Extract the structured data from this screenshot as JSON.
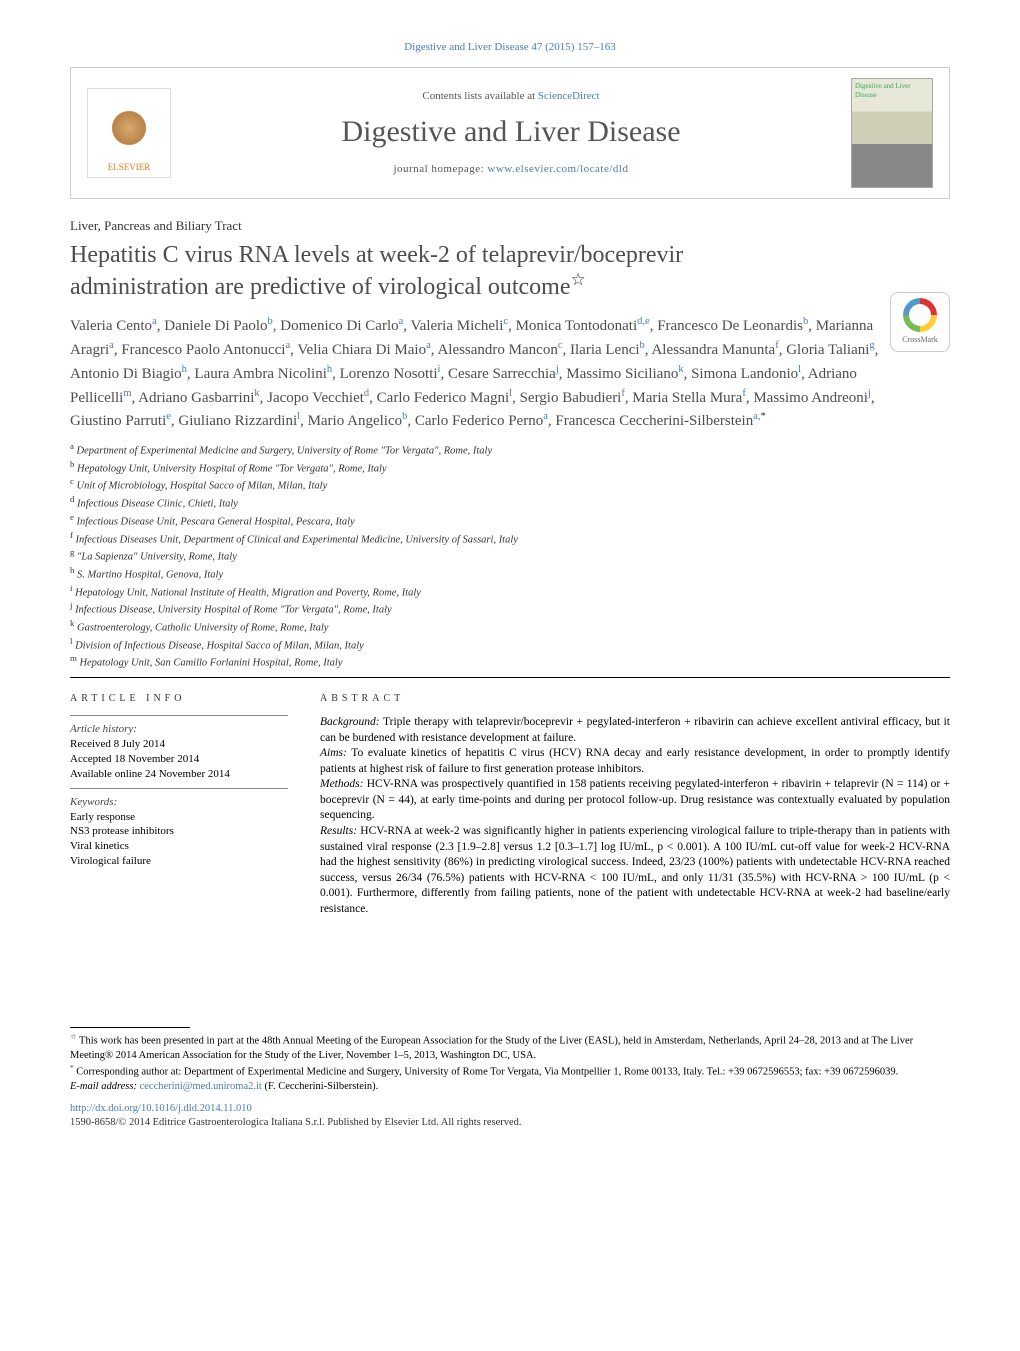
{
  "journal_ref_top": "Digestive and Liver Disease 47 (2015) 157–163",
  "header": {
    "contents_prefix": "Contents lists available at ",
    "contents_link": "ScienceDirect",
    "journal_title": "Digestive and Liver Disease",
    "homepage_prefix": "journal homepage: ",
    "homepage_url": "www.elsevier.com/locate/dld",
    "elsevier_label": "ELSEVIER",
    "cover_text": "Digestive and Liver Disease"
  },
  "section_label": "Liver, Pancreas and Biliary Tract",
  "article_title_line1": "Hepatitis C virus RNA levels at week-2 of telaprevir/boceprevir",
  "article_title_line2": "administration are predictive of virological outcome",
  "title_note_marker": "☆",
  "crossmark_label": "CrossMark",
  "authors_html": "Valeria Cento<span class='sup'>a</span>, Daniele Di Paolo<span class='sup'>b</span>, Domenico Di Carlo<span class='sup'>a</span>, Valeria Micheli<span class='sup'>c</span>, Monica Tontodonati<span class='sup'>d,e</span>, Francesco De Leonardis<span class='sup'>b</span>, Marianna Aragri<span class='sup'>a</span>, Francesco Paolo Antonucci<span class='sup'>a</span>, Velia Chiara Di Maio<span class='sup'>a</span>, Alessandro Mancon<span class='sup'>c</span>, Ilaria Lenci<span class='sup'>b</span>, Alessandra Manunta<span class='sup'>f</span>, Gloria Taliani<span class='sup'>g</span>, Antonio Di Biagio<span class='sup'>h</span>, Laura Ambra Nicolini<span class='sup'>h</span>, Lorenzo Nosotti<span class='sup'>i</span>, Cesare Sarrecchia<span class='sup'>j</span>, Massimo Siciliano<span class='sup'>k</span>, Simona Landonio<span class='sup'>l</span>, Adriano Pellicelli<span class='sup'>m</span>, Adriano Gasbarrini<span class='sup'>k</span>, Jacopo Vecchiet<span class='sup'>d</span>, Carlo Federico Magni<span class='sup'>l</span>, Sergio Babudieri<span class='sup'>f</span>, Maria Stella Mura<span class='sup'>f</span>, Massimo Andreoni<span class='sup'>j</span>, Giustino Parruti<span class='sup'>e</span>, Giuliano Rizzardini<span class='sup'>l</span>, Mario Angelico<span class='sup'>b</span>, Carlo Federico Perno<span class='sup'>a</span>, Francesca Ceccherini-Silberstein<span class='sup'>a,</span><span class='sup-black'>*</span>",
  "affiliations": [
    "a Department of Experimental Medicine and Surgery, University of Rome \"Tor Vergata\", Rome, Italy",
    "b Hepatology Unit, University Hospital of Rome \"Tor Vergata\", Rome, Italy",
    "c Unit of Microbiology, Hospital Sacco of Milan, Milan, Italy",
    "d Infectious Disease Clinic, Chieti, Italy",
    "e Infectious Disease Unit, Pescara General Hospital, Pescara, Italy",
    "f Infectious Diseases Unit, Department of Clinical and Experimental Medicine, University of Sassari, Italy",
    "g \"La Sapienza\" University, Rome, Italy",
    "h S. Martino Hospital, Genova, Italy",
    "i Hepatology Unit, National Institute of Health, Migration and Poverty, Rome, Italy",
    "j Infectious Disease, University Hospital of Rome \"Tor Vergata\", Rome, Italy",
    "k Gastroenterology, Catholic University of Rome, Rome, Italy",
    "l Division of Infectious Disease, Hospital Sacco of Milan, Milan, Italy",
    "m Hepatology Unit, San Camillo Forlanini Hospital, Rome, Italy"
  ],
  "article_info": {
    "heading": "article info",
    "history_label": "Article history:",
    "received": "Received 8 July 2014",
    "accepted": "Accepted 18 November 2014",
    "online": "Available online 24 November 2014",
    "keywords_label": "Keywords:",
    "keywords": [
      "Early response",
      "NS3 protease inhibitors",
      "Viral kinetics",
      "Virological failure"
    ]
  },
  "abstract": {
    "heading": "abstract",
    "background_label": "Background:",
    "background": " Triple therapy with telaprevir/boceprevir + pegylated-interferon + ribavirin can achieve excellent antiviral efficacy, but it can be burdened with resistance development at failure.",
    "aims_label": "Aims:",
    "aims": " To evaluate kinetics of hepatitis C virus (HCV) RNA decay and early resistance development, in order to promptly identify patients at highest risk of failure to first generation protease inhibitors.",
    "methods_label": "Methods:",
    "methods": " HCV-RNA was prospectively quantified in 158 patients receiving pegylated-interferon + ribavirin + telaprevir (N = 114) or + boceprevir (N = 44), at early time-points and during per protocol follow-up. Drug resistance was contextually evaluated by population sequencing.",
    "results_label": "Results:",
    "results": " HCV-RNA at week-2 was significantly higher in patients experiencing virological failure to triple-therapy than in patients with sustained viral response (2.3 [1.9–2.8] versus 1.2 [0.3–1.7] log IU/mL, p < 0.001). A 100 IU/mL cut-off value for week-2 HCV-RNA had the highest sensitivity (86%) in predicting virological success. Indeed, 23/23 (100%) patients with undetectable HCV-RNA reached success, versus 26/34 (76.5%) patients with HCV-RNA < 100 IU/mL, and only 11/31 (35.5%) with HCV-RNA > 100 IU/mL (p < 0.001). Furthermore, differently from failing patients, none of the patient with undetectable HCV-RNA at week-2 had baseline/early resistance."
  },
  "footnotes": {
    "note1_marker": "☆",
    "note1": " This work has been presented in part at the 48th Annual Meeting of the European Association for the Study of the Liver (EASL), held in Amsterdam, Netherlands, April 24–28, 2013 and at The Liver Meeting® 2014 American Association for the Study of the Liver, November 1–5, 2013, Washington DC, USA.",
    "corr_marker": "*",
    "corr": " Corresponding author at: Department of Experimental Medicine and Surgery, University of Rome Tor Vergata, Via Montpellier 1, Rome 00133, Italy. Tel.: +39 0672596553; fax: +39 0672596039.",
    "email_label": "E-mail address: ",
    "email": "ceccherini@med.uniroma2.it",
    "email_name": " (F. Ceccherini-Silberstein)."
  },
  "doi": {
    "url": "http://dx.doi.org/10.1016/j.dld.2014.11.010",
    "copyright": "1590-8658/© 2014 Editrice Gastroenterologica Italiana S.r.l. Published by Elsevier Ltd. All rights reserved."
  },
  "colors": {
    "link": "#4a7ab5",
    "heading_gray": "#4d4d4d",
    "elsevier_orange": "#e67817"
  }
}
